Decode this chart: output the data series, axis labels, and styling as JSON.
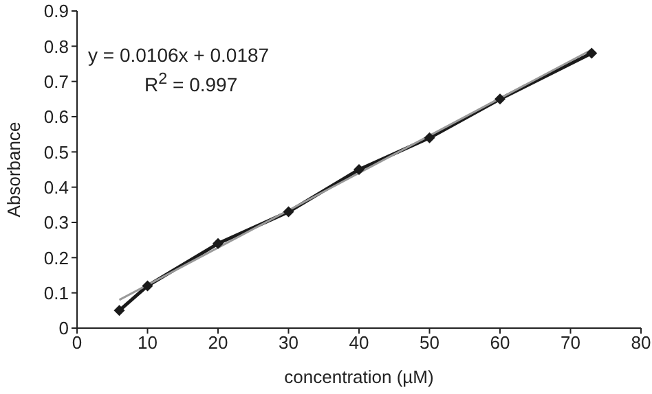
{
  "chart_data": {
    "type": "line",
    "xlabel": "concentration (µM)",
    "ylabel": "Absorbance",
    "xlim": [
      0,
      80
    ],
    "xticks": [
      0,
      10,
      20,
      30,
      40,
      50,
      60,
      70,
      80
    ],
    "ylim": [
      0,
      0.9
    ],
    "yticks": [
      0,
      0.1,
      0.2,
      0.3,
      0.4,
      0.5,
      0.6,
      0.7,
      0.8,
      0.9
    ],
    "marker": "diamond",
    "line_style": "solid",
    "series": [
      {
        "color": "#1a1a1a",
        "x": [
          6,
          10,
          20,
          30,
          40,
          50,
          60,
          73
        ],
        "values": [
          0.05,
          0.12,
          0.24,
          0.33,
          0.45,
          0.54,
          0.65,
          0.78
        ]
      },
      {
        "color": "#9a9a9a",
        "marker": "none",
        "x": [
          6,
          73
        ],
        "values": [
          0.08,
          0.79
        ]
      }
    ],
    "annotations": [
      "y = 0.0106x + 0.0187",
      "R$^{2}$ = 0.997"
    ]
  }
}
